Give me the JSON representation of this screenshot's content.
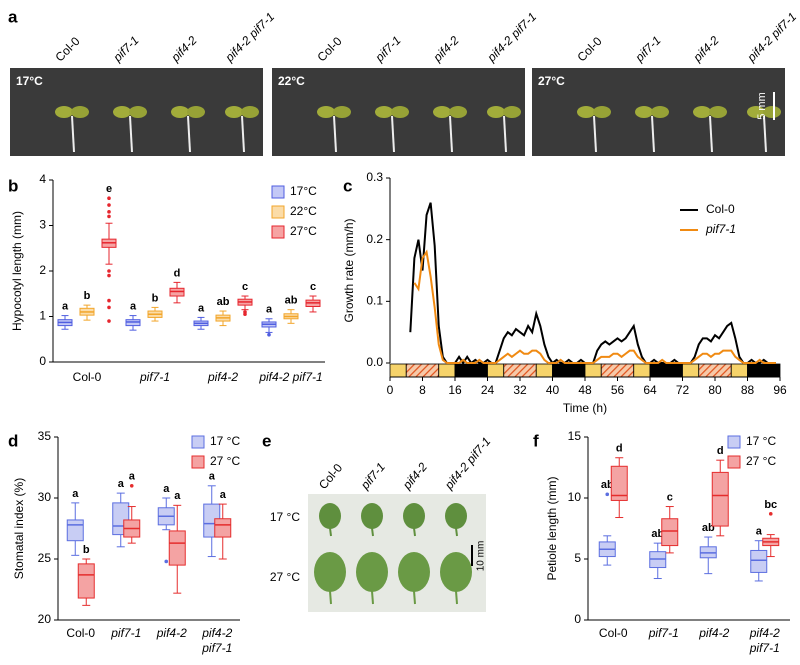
{
  "chart_data": [
    {
      "type": "box",
      "panel": "b",
      "ylabel": "Hypocotyl length (mm)",
      "categories": [
        "Col-0",
        "pif7-1",
        "pif4-2",
        "pif4-2 pif7-1"
      ],
      "ylim": [
        0,
        4
      ],
      "yticks": [
        0,
        1,
        2,
        3,
        4
      ],
      "series": [
        {
          "name": "17°C",
          "color": "#4f5de0",
          "fill": "#c3c8f6",
          "boxes": [
            {
              "min": 0.72,
              "q1": 0.8,
              "median": 0.87,
              "q3": 0.93,
              "max": 1.02,
              "outliers": []
            },
            {
              "min": 0.7,
              "q1": 0.8,
              "median": 0.88,
              "q3": 0.93,
              "max": 1.02,
              "outliers": []
            },
            {
              "min": 0.72,
              "q1": 0.8,
              "median": 0.85,
              "q3": 0.9,
              "max": 0.98,
              "outliers": []
            },
            {
              "min": 0.65,
              "q1": 0.77,
              "median": 0.83,
              "q3": 0.88,
              "max": 0.95,
              "outliers": [
                0.6
              ]
            }
          ],
          "letters": [
            "a",
            "a",
            "a",
            "a"
          ]
        },
        {
          "name": "22°C",
          "color": "#f2a52a",
          "fill": "#fbdca8",
          "boxes": [
            {
              "min": 0.92,
              "q1": 1.03,
              "median": 1.1,
              "q3": 1.18,
              "max": 1.25,
              "outliers": []
            },
            {
              "min": 0.9,
              "q1": 0.98,
              "median": 1.05,
              "q3": 1.12,
              "max": 1.2,
              "outliers": []
            },
            {
              "min": 0.8,
              "q1": 0.9,
              "median": 0.97,
              "q3": 1.03,
              "max": 1.12,
              "outliers": []
            },
            {
              "min": 0.85,
              "q1": 0.95,
              "median": 1.0,
              "q3": 1.06,
              "max": 1.15,
              "outliers": []
            }
          ],
          "letters": [
            "b",
            "b",
            "ab",
            "ab"
          ]
        },
        {
          "name": "27°C",
          "color": "#e6262e",
          "fill": "#f6a3a3",
          "boxes": [
            {
              "min": 2.15,
              "q1": 2.52,
              "median": 2.62,
              "q3": 2.7,
              "max": 3.05,
              "outliers": [
                3.6,
                3.45,
                3.3,
                3.2,
                2.0,
                1.9,
                1.35,
                1.2,
                0.9
              ]
            },
            {
              "min": 1.3,
              "q1": 1.45,
              "median": 1.55,
              "q3": 1.62,
              "max": 1.75,
              "outliers": []
            },
            {
              "min": 1.15,
              "q1": 1.25,
              "median": 1.32,
              "q3": 1.38,
              "max": 1.45,
              "outliers": [
                1.05,
                1.1
              ]
            },
            {
              "min": 1.1,
              "q1": 1.22,
              "median": 1.3,
              "q3": 1.36,
              "max": 1.45,
              "outliers": []
            }
          ],
          "letters": [
            "e",
            "d",
            "c",
            "c"
          ]
        }
      ]
    },
    {
      "type": "line",
      "panel": "c",
      "ylabel": "Growth rate (mm/h)",
      "xlabel": "Time (h)",
      "xlim": [
        0,
        96
      ],
      "xticks": [
        0,
        8,
        16,
        24,
        32,
        40,
        48,
        56,
        64,
        72,
        80,
        88,
        96
      ],
      "ylim": [
        0,
        0.3
      ],
      "yticks": [
        {
          "value": 0,
          "label": "0.0"
        },
        {
          "value": 0.1,
          "label": "0.1"
        },
        {
          "value": 0.2,
          "label": "0.2"
        },
        {
          "value": 0.3,
          "label": "0.3"
        }
      ],
      "x": [
        5,
        6,
        7,
        8,
        9,
        10,
        11,
        12,
        13,
        14,
        15,
        16,
        17,
        18,
        19,
        20,
        21,
        22,
        23,
        24,
        25,
        26,
        27,
        28,
        29,
        30,
        31,
        32,
        33,
        34,
        35,
        36,
        37,
        38,
        39,
        40,
        41,
        42,
        43,
        44,
        45,
        46,
        47,
        48,
        49,
        50,
        51,
        52,
        53,
        54,
        55,
        56,
        57,
        58,
        59,
        60,
        61,
        62,
        63,
        64,
        65,
        66,
        67,
        68,
        69,
        70,
        71,
        72,
        73,
        74,
        75,
        76,
        77,
        78,
        79,
        80,
        81,
        82,
        83,
        84,
        85,
        86,
        87,
        88,
        89,
        90,
        91,
        92,
        93,
        94,
        95
      ],
      "series": [
        {
          "name": "Col-0",
          "color": "#000000",
          "values": [
            0.05,
            0.17,
            0.2,
            0.15,
            0.24,
            0.26,
            0.19,
            0.06,
            0.01,
            0,
            0,
            0,
            0.01,
            0,
            0.01,
            0,
            0.005,
            0,
            0,
            0.005,
            0,
            0,
            0.02,
            0.04,
            0.05,
            0.045,
            0.055,
            0.05,
            0.045,
            0.06,
            0.05,
            0.08,
            0.06,
            0.03,
            0.01,
            0,
            0.005,
            0,
            0,
            0.005,
            0,
            0,
            0.005,
            0,
            0,
            0,
            0.02,
            0.03,
            0.035,
            0.03,
            0.035,
            0.04,
            0.035,
            0.04,
            0.05,
            0.06,
            0.03,
            0.01,
            0,
            0,
            0.005,
            0,
            0,
            0,
            0,
            0.005,
            0,
            0,
            0,
            0,
            0.01,
            0.03,
            0.04,
            0.04,
            0.035,
            0.045,
            0.04,
            0.05,
            0.06,
            0.065,
            0.04,
            0.01,
            0,
            0,
            0.005,
            0,
            0,
            0.005,
            0,
            0,
            0
          ]
        },
        {
          "name": "pif7-1",
          "color": "#f08a12",
          "values": [
            null,
            0.13,
            0.12,
            0.17,
            0.18,
            0.14,
            0.09,
            0.03,
            0.005,
            0,
            0,
            0,
            0,
            0.005,
            0,
            0,
            0,
            0.005,
            0,
            0,
            0,
            0,
            0.005,
            0.01,
            0.015,
            0.01,
            0.015,
            0.02,
            0.015,
            0.015,
            0.02,
            0.02,
            0.015,
            0.005,
            0,
            0,
            0,
            0.005,
            0,
            0,
            0,
            0,
            0,
            0,
            0,
            0,
            0.005,
            0.01,
            0.01,
            0.01,
            0.015,
            0.015,
            0.01,
            0.015,
            0.02,
            0.02,
            0.01,
            0.005,
            0,
            0,
            0,
            0,
            0.005,
            0,
            0,
            0,
            0,
            0,
            0,
            0,
            0.005,
            0.01,
            0.015,
            0.015,
            0.01,
            0.015,
            0.015,
            0.02,
            0.02,
            0.02,
            0.01,
            0.005,
            0,
            0,
            0,
            0,
            0.005,
            0,
            0,
            0,
            0
          ]
        }
      ],
      "periods": [
        {
          "start": 0,
          "end": 4,
          "color": "#f6d36a"
        },
        {
          "start": 4,
          "end": 12,
          "color": "#f3b08a",
          "hatched": true
        },
        {
          "start": 12,
          "end": 16,
          "color": "#f6d36a"
        },
        {
          "start": 16,
          "end": 24,
          "color": "#000000"
        },
        {
          "start": 24,
          "end": 28,
          "color": "#f6d36a"
        },
        {
          "start": 28,
          "end": 36,
          "color": "#f3b08a",
          "hatched": true
        },
        {
          "start": 36,
          "end": 40,
          "color": "#f6d36a"
        },
        {
          "start": 40,
          "end": 48,
          "color": "#000000"
        },
        {
          "start": 48,
          "end": 52,
          "color": "#f6d36a"
        },
        {
          "start": 52,
          "end": 60,
          "color": "#f3b08a",
          "hatched": true
        },
        {
          "start": 60,
          "end": 64,
          "color": "#f6d36a"
        },
        {
          "start": 64,
          "end": 72,
          "color": "#000000"
        },
        {
          "start": 72,
          "end": 76,
          "color": "#f6d36a"
        },
        {
          "start": 76,
          "end": 84,
          "color": "#f3b08a",
          "hatched": true
        },
        {
          "start": 84,
          "end": 88,
          "color": "#f6d36a"
        },
        {
          "start": 88,
          "end": 96,
          "color": "#000000"
        }
      ]
    },
    {
      "type": "box",
      "panel": "d",
      "ylabel": "Stomatal index (%)",
      "categories": [
        "Col-0",
        "pif7-1",
        "pif4-2",
        [
          "pif4-2",
          "pif7-1"
        ]
      ],
      "ylim": [
        20,
        35
      ],
      "yticks": [
        20,
        25,
        30,
        35
      ],
      "series": [
        {
          "name": "17 °C",
          "color": "#5b6ee0",
          "fill": "#c8cdf4",
          "boxes": [
            {
              "min": 25.3,
              "q1": 26.5,
              "median": 27.8,
              "q3": 28.2,
              "max": 29.6,
              "outliers": []
            },
            {
              "min": 26,
              "q1": 27,
              "median": 27.7,
              "q3": 29.6,
              "max": 30.4,
              "outliers": []
            },
            {
              "min": 27.4,
              "q1": 27.8,
              "median": 28.5,
              "q3": 29.2,
              "max": 30,
              "outliers": [
                24.8
              ]
            },
            {
              "min": 25.2,
              "q1": 26.8,
              "median": 27.9,
              "q3": 29.5,
              "max": 31,
              "outliers": []
            }
          ],
          "letters": [
            "a",
            "a",
            "a",
            "a"
          ]
        },
        {
          "name": "27 °C",
          "color": "#e52d2d",
          "fill": "#f4a3a3",
          "boxes": [
            {
              "min": 21.2,
              "q1": 21.8,
              "median": 23.7,
              "q3": 24.6,
              "max": 25,
              "outliers": []
            },
            {
              "min": 26.3,
              "q1": 26.8,
              "median": 27.5,
              "q3": 28.2,
              "max": 29.3,
              "outliers": [
                31
              ]
            },
            {
              "min": 22.2,
              "q1": 24.5,
              "median": 26.3,
              "q3": 27.3,
              "max": 29.4,
              "outliers": []
            },
            {
              "min": 25,
              "q1": 26.8,
              "median": 27.8,
              "q3": 28.3,
              "max": 29.5,
              "outliers": []
            }
          ],
          "letters": [
            "b",
            "a",
            "a",
            "a"
          ]
        }
      ]
    },
    {
      "type": "box",
      "panel": "f",
      "ylabel": "Petiole length (mm)",
      "categories": [
        "Col-0",
        "pif7-1",
        "pif4-2",
        [
          "pif4-2",
          "pif7-1"
        ]
      ],
      "ylim": [
        0,
        15
      ],
      "yticks": [
        0,
        5,
        10,
        15
      ],
      "series": [
        {
          "name": "17 °C",
          "color": "#5b6ee0",
          "fill": "#c8cdf4",
          "boxes": [
            {
              "min": 4.5,
              "q1": 5.2,
              "median": 5.8,
              "q3": 6.4,
              "max": 6.9,
              "outliers": [
                10.3
              ]
            },
            {
              "min": 3.4,
              "q1": 4.3,
              "median": 5.0,
              "q3": 5.6,
              "max": 6.3,
              "outliers": []
            },
            {
              "min": 3.8,
              "q1": 5.1,
              "median": 5.5,
              "q3": 6.0,
              "max": 6.8,
              "outliers": []
            },
            {
              "min": 3.2,
              "q1": 3.9,
              "median": 4.9,
              "q3": 5.7,
              "max": 6.5,
              "outliers": []
            }
          ],
          "letters": [
            "ab",
            "ab",
            "ab",
            "a"
          ]
        },
        {
          "name": "27 °C",
          "color": "#e52d2d",
          "fill": "#f4a3a3",
          "boxes": [
            {
              "min": 8.4,
              "q1": 9.8,
              "median": 10.2,
              "q3": 12.6,
              "max": 13.3,
              "outliers": []
            },
            {
              "min": 5.5,
              "q1": 6.1,
              "median": 7.3,
              "q3": 8.3,
              "max": 9.3,
              "outliers": []
            },
            {
              "min": 6.9,
              "q1": 7.7,
              "median": 10.2,
              "q3": 12.1,
              "max": 13.1,
              "outliers": []
            },
            {
              "min": 5.2,
              "q1": 6.1,
              "median": 6.4,
              "q3": 6.7,
              "max": 7.0,
              "outliers": [
                8.7
              ]
            }
          ],
          "letters": [
            "d",
            "c",
            "d",
            "bc"
          ]
        }
      ]
    }
  ],
  "photo_panels": [
    {
      "panel": "a",
      "genotypes": [
        "Col-0",
        "pif7-1",
        "pif4-2",
        "pif4-2 pif7-1"
      ],
      "temperatures": [
        "17°C",
        "22°C",
        "27°C"
      ],
      "scale_bar": "5 mm"
    },
    {
      "panel": "e",
      "genotypes": [
        "Col-0",
        "pif7-1",
        "pif4-2",
        "pif4-2 pif7-1"
      ],
      "temperatures": [
        "17 °C",
        "27 °C"
      ],
      "scale_bar": "10 mm"
    }
  ]
}
